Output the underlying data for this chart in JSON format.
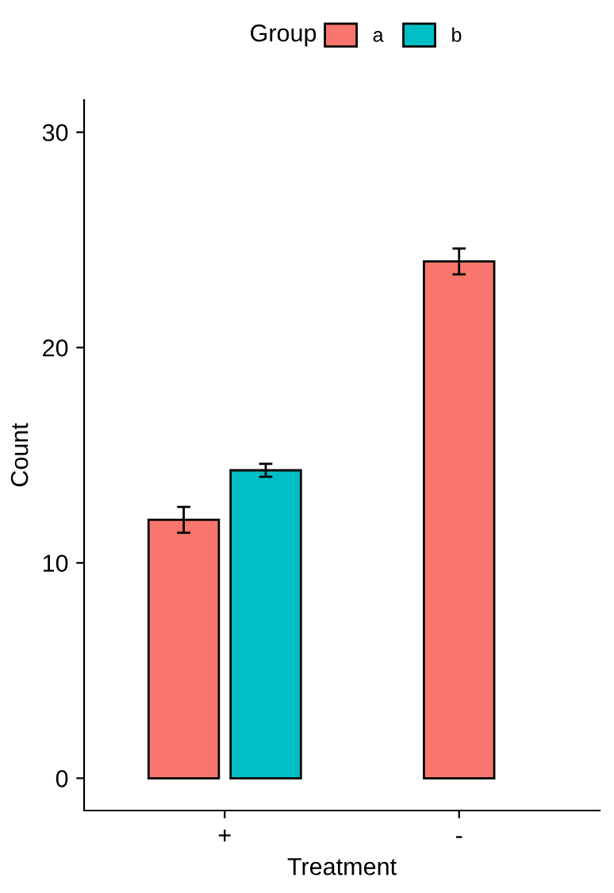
{
  "chart_data": {
    "type": "bar",
    "xlabel": "Treatment",
    "ylabel": "Count",
    "legend_title": "Group",
    "categories": [
      "+",
      "-"
    ],
    "series": [
      {
        "name": "a",
        "color": "#f8766d",
        "values": [
          12,
          24
        ],
        "errors": [
          0.6,
          0.6
        ]
      },
      {
        "name": "b",
        "color": "#00bfc4",
        "values": [
          14.3,
          null
        ],
        "errors": [
          0.3,
          null
        ]
      }
    ],
    "ylim": [
      -1.5,
      31.5
    ],
    "yticks": [
      0,
      10,
      20,
      30
    ],
    "grid": false,
    "legend": "top"
  }
}
